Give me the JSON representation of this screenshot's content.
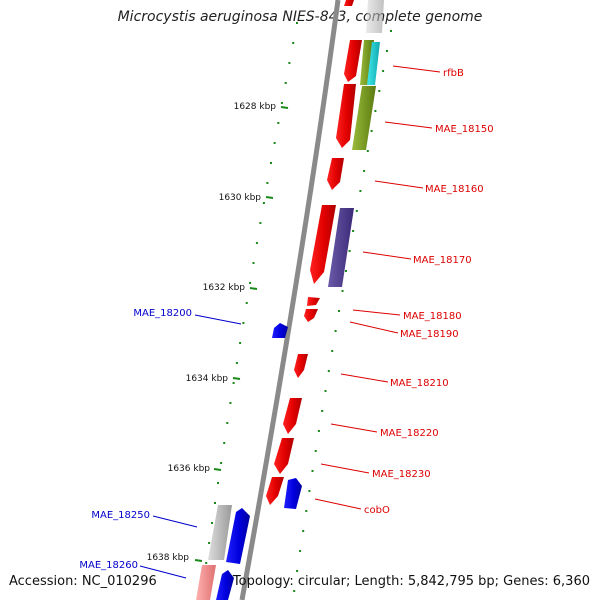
{
  "title": "Microcystis aeruginosa NIES-843, complete genome",
  "footer": {
    "accession": "Accession: NC_010296",
    "topology": "Topology: circular; Length: 5,842,795 bp; Genes: 6,360"
  },
  "scale": {
    "ticks": [
      "1628 kbp",
      "1630 kbp",
      "1632 kbp",
      "1634 kbp",
      "1636 kbp",
      "1638 kbp"
    ]
  },
  "genes": [
    {
      "label": "rfbB",
      "color": "#dd0000"
    },
    {
      "label": "MAE_18150",
      "color": "#dd0000"
    },
    {
      "label": "MAE_18160",
      "color": "#dd0000"
    },
    {
      "label": "MAE_18170",
      "color": "#dd0000"
    },
    {
      "label": "MAE_18180",
      "color": "#dd0000"
    },
    {
      "label": "MAE_18190",
      "color": "#dd0000"
    },
    {
      "label": "MAE_18210",
      "color": "#dd0000"
    },
    {
      "label": "MAE_18220",
      "color": "#dd0000"
    },
    {
      "label": "MAE_18230",
      "color": "#dd0000"
    },
    {
      "label": "cobO",
      "color": "#dd0000"
    },
    {
      "label": "MAE_18200",
      "color": "#0000cc"
    },
    {
      "label": "MAE_18250",
      "color": "#0000cc"
    },
    {
      "label": "MAE_18260",
      "color": "#0000cc"
    }
  ]
}
